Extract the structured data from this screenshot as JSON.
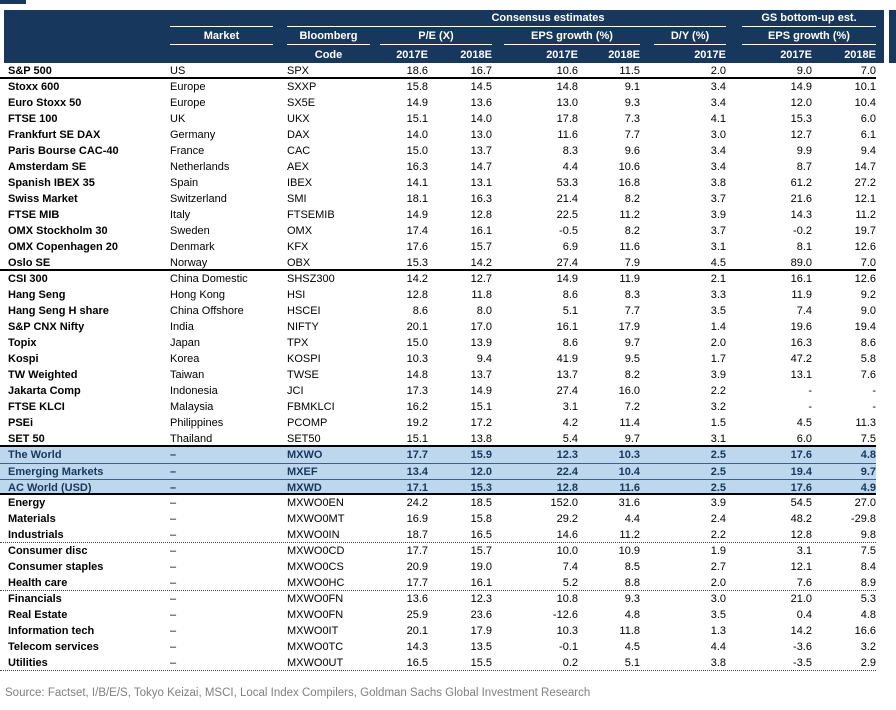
{
  "header": {
    "consensus": "Consensus estimates",
    "gs": "GS bottom-up est.",
    "market": "Market",
    "bloomberg": "Bloomberg",
    "code": "Code",
    "pe": "P/E (X)",
    "eps": "EPS growth (%)",
    "dy": "D/Y (%)",
    "gs_eps": "EPS growth (%)",
    "years": [
      "2017E",
      "2018E",
      "2017E",
      "2018E",
      "2017E",
      "2017E",
      "2018E"
    ]
  },
  "chart_data": {
    "type": "table",
    "column_groups": [
      "Consensus estimates",
      "GS bottom-up est."
    ],
    "columns": [
      "",
      "Market",
      "Bloomberg Code",
      "P/E (X) 2017E",
      "P/E (X) 2018E",
      "EPS growth (%) 2017E",
      "EPS growth (%) 2018E",
      "D/Y (%) 2017E",
      "GS EPS growth (%) 2017E",
      "GS EPS growth (%) 2018E"
    ],
    "rows": [
      {
        "index": "S&P 500",
        "market": "US",
        "code": "SPX",
        "values": [
          "18.6",
          "16.7",
          "10.6",
          "11.5",
          "2.0",
          "9.0",
          "7.0"
        ],
        "highlight": false,
        "sep": "solid"
      },
      {
        "index": "Stoxx 600",
        "market": "Europe",
        "code": "SXXP",
        "values": [
          "15.8",
          "14.5",
          "14.8",
          "9.1",
          "3.4",
          "14.9",
          "10.1"
        ],
        "highlight": false,
        "sep": null
      },
      {
        "index": "Euro Stoxx 50",
        "market": "Europe",
        "code": "SX5E",
        "values": [
          "14.9",
          "13.6",
          "13.0",
          "9.3",
          "3.4",
          "12.0",
          "10.4"
        ],
        "highlight": false,
        "sep": null
      },
      {
        "index": "FTSE 100",
        "market": "UK",
        "code": "UKX",
        "values": [
          "15.1",
          "14.0",
          "17.8",
          "7.3",
          "4.1",
          "15.3",
          "6.0"
        ],
        "highlight": false,
        "sep": null
      },
      {
        "index": "Frankfurt SE DAX",
        "market": "Germany",
        "code": "DAX",
        "values": [
          "14.0",
          "13.0",
          "11.6",
          "7.7",
          "3.0",
          "12.7",
          "6.1"
        ],
        "highlight": false,
        "sep": null
      },
      {
        "index": "Paris Bourse CAC-40",
        "market": "France",
        "code": "CAC",
        "values": [
          "15.0",
          "13.7",
          "8.3",
          "9.6",
          "3.4",
          "9.9",
          "9.4"
        ],
        "highlight": false,
        "sep": null
      },
      {
        "index": "Amsterdam SE",
        "market": "Netherlands",
        "code": "AEX",
        "values": [
          "16.3",
          "14.7",
          "4.4",
          "10.6",
          "3.4",
          "8.7",
          "14.7"
        ],
        "highlight": false,
        "sep": null
      },
      {
        "index": "Spanish IBEX 35",
        "market": "Spain",
        "code": "IBEX",
        "values": [
          "14.1",
          "13.1",
          "53.3",
          "16.8",
          "3.8",
          "61.2",
          "27.2"
        ],
        "highlight": false,
        "sep": null
      },
      {
        "index": "Swiss Market",
        "market": "Switzerland",
        "code": "SMI",
        "values": [
          "18.1",
          "16.3",
          "21.4",
          "8.2",
          "3.7",
          "21.6",
          "12.1"
        ],
        "highlight": false,
        "sep": null
      },
      {
        "index": "FTSE MIB",
        "market": "Italy",
        "code": "FTSEMIB",
        "values": [
          "14.9",
          "12.8",
          "22.5",
          "11.2",
          "3.9",
          "14.3",
          "11.2"
        ],
        "highlight": false,
        "sep": null
      },
      {
        "index": "OMX Stockholm 30",
        "market": "Sweden",
        "code": "OMX",
        "values": [
          "17.4",
          "16.1",
          "-0.5",
          "8.2",
          "3.7",
          "-0.2",
          "19.7"
        ],
        "highlight": false,
        "sep": null
      },
      {
        "index": "OMX Copenhagen 20",
        "market": "Denmark",
        "code": "KFX",
        "values": [
          "17.6",
          "15.7",
          "6.9",
          "11.6",
          "3.1",
          "8.1",
          "12.6"
        ],
        "highlight": false,
        "sep": null
      },
      {
        "index": "Oslo SE",
        "market": "Norway",
        "code": "OBX",
        "values": [
          "15.3",
          "14.2",
          "27.4",
          "7.9",
          "4.5",
          "89.0",
          "7.0"
        ],
        "highlight": false,
        "sep": "solid"
      },
      {
        "index": "CSI 300",
        "market": "China Domestic",
        "code": "SHSZ300",
        "values": [
          "14.2",
          "12.7",
          "14.9",
          "11.9",
          "2.1",
          "16.1",
          "12.6"
        ],
        "highlight": false,
        "sep": null
      },
      {
        "index": "Hang Seng",
        "market": "Hong Kong",
        "code": "HSI",
        "values": [
          "12.8",
          "11.8",
          "8.6",
          "8.3",
          "3.3",
          "11.9",
          "9.2"
        ],
        "highlight": false,
        "sep": null
      },
      {
        "index": "Hang Seng H share",
        "market": "China Offshore",
        "code": "HSCEI",
        "values": [
          "8.6",
          "8.0",
          "5.1",
          "7.7",
          "3.5",
          "7.4",
          "9.0"
        ],
        "highlight": false,
        "sep": null
      },
      {
        "index": "S&P CNX Nifty",
        "market": "India",
        "code": "NIFTY",
        "values": [
          "20.1",
          "17.0",
          "16.1",
          "17.9",
          "1.4",
          "19.6",
          "19.4"
        ],
        "highlight": false,
        "sep": null
      },
      {
        "index": "Topix",
        "market": "Japan",
        "code": "TPX",
        "values": [
          "15.0",
          "13.9",
          "8.6",
          "9.7",
          "2.0",
          "16.3",
          "8.6"
        ],
        "highlight": false,
        "sep": null
      },
      {
        "index": "Kospi",
        "market": "Korea",
        "code": "KOSPI",
        "values": [
          "10.3",
          "9.4",
          "41.9",
          "9.5",
          "1.7",
          "47.2",
          "5.8"
        ],
        "highlight": false,
        "sep": null
      },
      {
        "index": "TW Weighted",
        "market": "Taiwan",
        "code": "TWSE",
        "values": [
          "14.8",
          "13.7",
          "13.7",
          "8.2",
          "3.9",
          "13.1",
          "7.6"
        ],
        "highlight": false,
        "sep": null
      },
      {
        "index": "Jakarta Comp",
        "market": "Indonesia",
        "code": "JCI",
        "values": [
          "17.3",
          "14.9",
          "27.4",
          "16.0",
          "2.2",
          "-",
          "-"
        ],
        "highlight": false,
        "sep": null
      },
      {
        "index": "FTSE KLCI",
        "market": "Malaysia",
        "code": "FBMKLCI",
        "values": [
          "16.2",
          "15.1",
          "3.1",
          "7.2",
          "3.2",
          "-",
          "-"
        ],
        "highlight": false,
        "sep": null
      },
      {
        "index": "PSEi",
        "market": "Philippines",
        "code": "PCOMP",
        "values": [
          "19.2",
          "17.2",
          "4.2",
          "11.4",
          "1.5",
          "4.5",
          "11.3"
        ],
        "highlight": false,
        "sep": null
      },
      {
        "index": "SET 50",
        "market": "Thailand",
        "code": "SET50",
        "values": [
          "15.1",
          "13.8",
          "5.4",
          "9.7",
          "3.1",
          "6.0",
          "7.5"
        ],
        "highlight": false,
        "sep": "solid"
      },
      {
        "index": "The World",
        "market": "–",
        "code": "MXWO",
        "values": [
          "17.7",
          "15.9",
          "12.3",
          "10.3",
          "2.5",
          "17.6",
          "4.8"
        ],
        "highlight": true,
        "sep": null
      },
      {
        "index": "Emerging Markets",
        "market": "–",
        "code": "MXEF",
        "values": [
          "13.4",
          "12.0",
          "22.4",
          "10.4",
          "2.5",
          "19.4",
          "9.7"
        ],
        "highlight": true,
        "sep": null
      },
      {
        "index": "AC World (USD)",
        "market": "–",
        "code": "MXWD",
        "values": [
          "17.1",
          "15.3",
          "12.8",
          "11.6",
          "2.5",
          "17.6",
          "4.9"
        ],
        "highlight": true,
        "sep": "solid"
      },
      {
        "index": "Energy",
        "market": "–",
        "code": "MXWO0EN",
        "values": [
          "24.2",
          "18.5",
          "152.0",
          "31.6",
          "3.9",
          "54.5",
          "27.0"
        ],
        "highlight": false,
        "sep": null
      },
      {
        "index": "Materials",
        "market": "–",
        "code": "MXWO0MT",
        "values": [
          "16.9",
          "15.8",
          "29.2",
          "4.4",
          "2.4",
          "48.2",
          "-29.8"
        ],
        "highlight": false,
        "sep": null
      },
      {
        "index": "Industrials",
        "market": "–",
        "code": "MXWO0IN",
        "values": [
          "18.7",
          "16.5",
          "14.6",
          "11.2",
          "2.2",
          "12.8",
          "9.8"
        ],
        "highlight": false,
        "sep": "dotted"
      },
      {
        "index": "Consumer disc",
        "market": "–",
        "code": "MXWO0CD",
        "values": [
          "17.7",
          "15.7",
          "10.0",
          "10.9",
          "1.9",
          "3.1",
          "7.5"
        ],
        "highlight": false,
        "sep": null
      },
      {
        "index": "Consumer staples",
        "market": "–",
        "code": "MXWO0CS",
        "values": [
          "20.9",
          "19.0",
          "7.4",
          "8.5",
          "2.7",
          "12.1",
          "8.4"
        ],
        "highlight": false,
        "sep": null
      },
      {
        "index": "Health care",
        "market": "–",
        "code": "MXWO0HC",
        "values": [
          "17.7",
          "16.1",
          "5.2",
          "8.8",
          "2.0",
          "7.6",
          "8.9"
        ],
        "highlight": false,
        "sep": "dotted"
      },
      {
        "index": "Financials",
        "market": "–",
        "code": "MXWO0FN",
        "values": [
          "13.6",
          "12.3",
          "10.8",
          "9.3",
          "3.0",
          "21.0",
          "5.3"
        ],
        "highlight": false,
        "sep": null
      },
      {
        "index": "Real Estate",
        "market": "–",
        "code": "MXWO0FN",
        "values": [
          "25.9",
          "23.6",
          "-12.6",
          "4.8",
          "3.5",
          "0.4",
          "4.8"
        ],
        "highlight": false,
        "sep": null
      },
      {
        "index": "Information tech",
        "market": "–",
        "code": "MXWO0IT",
        "values": [
          "20.1",
          "17.9",
          "10.3",
          "11.8",
          "1.3",
          "14.2",
          "16.6"
        ],
        "highlight": false,
        "sep": null
      },
      {
        "index": "Telecom services",
        "market": "–",
        "code": "MXWO0TC",
        "values": [
          "14.3",
          "13.5",
          "-0.1",
          "4.5",
          "4.4",
          "-3.6",
          "3.2"
        ],
        "highlight": false,
        "sep": null
      },
      {
        "index": "Utilities",
        "market": "–",
        "code": "MXWO0UT",
        "values": [
          "16.5",
          "15.5",
          "0.2",
          "5.1",
          "3.8",
          "-3.5",
          "2.9"
        ],
        "highlight": false,
        "sep": "dotted"
      }
    ]
  },
  "footer": {
    "source": "Source: Factset, I/B/E/S, Tokyo Keizai, MSCI, Local Index Compilers, Goldman Sachs Global Investment Research"
  },
  "colors": {
    "header_navy": "#17375C",
    "highlight_blue": "#BDD7EE",
    "highlight_text": "#17375C",
    "separator_black": "#000000",
    "source_gray": "#808080"
  }
}
